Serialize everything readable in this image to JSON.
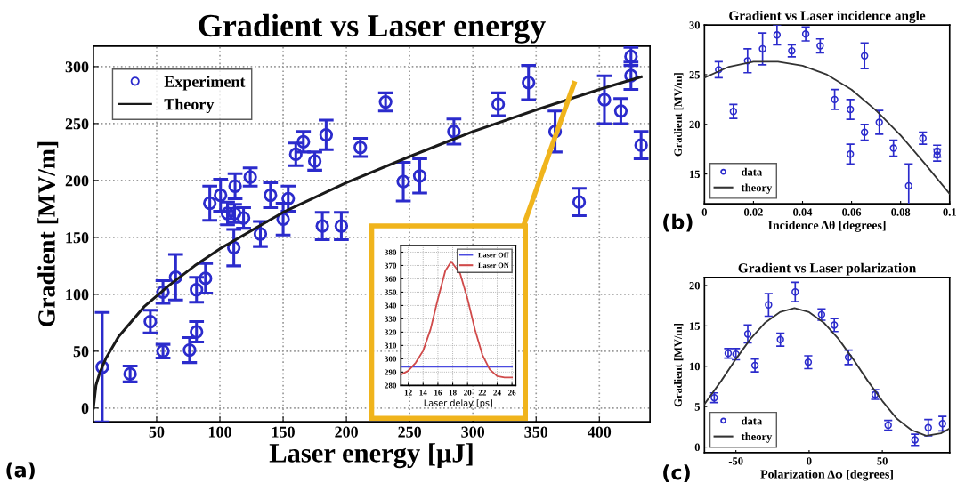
{
  "chart_data": [
    {
      "type": "scatter",
      "title": "Gradient vs Laser energy",
      "xlabel": "Laser energy [μJ]",
      "ylabel": "Gradient [MV/m]",
      "annotations": [
        "(a)"
      ],
      "xlim": [
        0,
        440
      ],
      "xticks": [
        50,
        100,
        150,
        200,
        250,
        300,
        350,
        400
      ],
      "ylim": [
        -12,
        318
      ],
      "yticks": [
        0,
        50,
        100,
        150,
        200,
        250,
        300
      ],
      "grid": true,
      "legend": "top left",
      "series": [
        {
          "name": "Experiment",
          "type": "scatter",
          "marker": "circle",
          "color": "#2b2bcc",
          "x": [
            7,
            29,
            45,
            55,
            55,
            65,
            76,
            81.5,
            81.5,
            88.6,
            92,
            100.5,
            106,
            111,
            111.6,
            112,
            118.7,
            124,
            132,
            140,
            150,
            154,
            160,
            166,
            175,
            181,
            184,
            196,
            211,
            231,
            245,
            258,
            285,
            320,
            344,
            365,
            384,
            404,
            417,
            425,
            425,
            433
          ],
          "values": [
            36,
            30,
            76,
            50,
            102,
            115,
            51,
            104,
            67,
            114,
            180,
            187,
            171,
            141,
            171,
            195,
            167,
            203,
            153,
            187,
            166,
            184,
            223,
            234,
            217,
            160,
            240,
            160,
            229,
            269,
            199,
            204,
            243,
            267,
            286,
            243,
            181,
            271,
            261,
            309,
            292,
            231
          ],
          "errors": [
            48,
            7,
            10,
            6,
            10,
            20,
            11,
            11,
            9,
            13,
            15,
            14,
            10,
            16,
            8,
            11,
            9,
            8,
            11,
            11,
            14,
            11,
            10,
            9,
            8,
            12,
            13,
            12,
            8,
            8,
            17,
            15,
            11,
            10,
            15,
            18,
            12,
            21,
            11,
            8,
            12,
            12
          ]
        },
        {
          "name": "Theory",
          "type": "line",
          "color": "#1a1a1a",
          "x": [
            0,
            2,
            5,
            10,
            20,
            40,
            60,
            80,
            100,
            150,
            200,
            250,
            300,
            350,
            400,
            433
          ],
          "values": [
            0,
            20,
            31,
            44,
            63,
            89,
            108,
            125,
            140,
            172,
            198,
            221,
            243,
            262,
            280,
            291
          ]
        }
      ]
    },
    {
      "type": "line",
      "xlabel": "Laser delay [ps]",
      "xlim": [
        11,
        26.5
      ],
      "xticks": [
        12,
        14,
        16,
        18,
        20,
        22,
        24,
        26
      ],
      "ylim": [
        280,
        385
      ],
      "yticks": [
        280,
        290,
        300,
        310,
        320,
        330,
        340,
        350,
        360,
        370,
        380
      ],
      "grid": true,
      "legend": "top right",
      "series": [
        {
          "name": "Laser Off",
          "color": "#4a4ae0",
          "x": [
            11,
            26
          ],
          "values": [
            294,
            294
          ]
        },
        {
          "name": "Laser ON",
          "color": "#d04a4a",
          "x": [
            11,
            12,
            13,
            14,
            15,
            16,
            17,
            17.8,
            19,
            20,
            21,
            22,
            23,
            24,
            25,
            26
          ],
          "values": [
            288,
            291,
            297,
            306,
            322,
            345,
            366,
            373,
            364,
            345,
            322,
            303,
            292,
            287,
            286,
            286
          ]
        }
      ]
    },
    {
      "type": "scatter",
      "title": "Gradient vs Laser incidence angle",
      "xlabel": "Incidence Δθ [degrees]",
      "ylabel": "Gradient [MV/m]",
      "annotations": [
        "(b)"
      ],
      "xlim": [
        0,
        0.1
      ],
      "xticks": [
        0,
        0.02,
        0.04,
        0.06,
        0.08,
        0.1
      ],
      "ylim": [
        12,
        30
      ],
      "yticks": [
        15,
        20,
        25,
        30
      ],
      "legend": "bottom left",
      "series": [
        {
          "name": "data",
          "type": "scatter",
          "marker": "circle",
          "color": "#2b2bcc",
          "x": [
            0.0058,
            0.0118,
            0.0176,
            0.0237,
            0.0296,
            0.0356,
            0.0413,
            0.0472,
            0.0531,
            0.0595,
            0.0595,
            0.0653,
            0.0653,
            0.0713,
            0.0771,
            0.0833,
            0.0891,
            0.0949,
            0.0949
          ],
          "values": [
            25.5,
            21.3,
            26.4,
            27.6,
            29.0,
            27.4,
            29.1,
            27.9,
            22.5,
            21.5,
            17.0,
            26.9,
            19.2,
            20.2,
            17.6,
            13.8,
            18.6,
            17.3,
            16.9
          ],
          "errors": [
            0.8,
            0.7,
            1.2,
            1.6,
            1.0,
            0.6,
            0.7,
            0.7,
            1.0,
            1.0,
            1.0,
            1.3,
            0.8,
            1.2,
            0.8,
            2.2,
            0.6,
            0.6,
            0.6
          ]
        },
        {
          "name": "theory",
          "type": "line",
          "color": "#333333",
          "x": [
            0,
            0.01,
            0.02,
            0.03,
            0.04,
            0.05,
            0.06,
            0.07,
            0.08,
            0.09,
            0.1
          ],
          "values": [
            24.7,
            25.8,
            26.3,
            26.3,
            25.9,
            25.0,
            23.5,
            21.4,
            18.9,
            16.0,
            13.0
          ]
        }
      ]
    },
    {
      "type": "scatter",
      "title": "Gradient vs Laser polarization",
      "xlabel": "Polarization Δϕ [degrees]",
      "ylabel": "Gradient [MV/m]",
      "annotations": [
        "(c)"
      ],
      "xlim": [
        -71.5,
        96
      ],
      "xticks": [
        -50,
        0,
        50
      ],
      "ylim": [
        -0.7,
        21
      ],
      "yticks": [
        0,
        5,
        10,
        15,
        20
      ],
      "legend": "bottom left",
      "series": [
        {
          "name": "data",
          "type": "scatter",
          "marker": "circle",
          "color": "#2b2bcc",
          "x": [
            -64.8,
            -55.3,
            -50,
            -41.9,
            -37,
            -27.7,
            -19.6,
            -9.5,
            -0.6,
            8.5,
            17.2,
            26.9,
            45.1,
            54,
            72.3,
            81.4,
            91.1
          ],
          "values": [
            6.1,
            11.6,
            11.5,
            14.0,
            10.1,
            17.6,
            13.3,
            19.2,
            10.5,
            16.4,
            15.1,
            11.1,
            6.5,
            2.7,
            0.9,
            2.4,
            2.9
          ],
          "errors": [
            0.6,
            0.6,
            0.7,
            1.1,
            0.8,
            1.4,
            0.8,
            1.2,
            0.8,
            0.7,
            0.8,
            0.9,
            0.6,
            0.6,
            0.7,
            1.0,
            0.9
          ]
        },
        {
          "name": "theory",
          "type": "line",
          "color": "#333333",
          "x": [
            -71.5,
            -60,
            -50,
            -40,
            -30,
            -20,
            -10,
            0,
            10,
            20,
            30,
            40,
            50,
            60,
            70,
            80,
            90,
            96
          ],
          "values": [
            5.3,
            8.2,
            10.9,
            13.4,
            15.4,
            16.7,
            17.2,
            16.7,
            15.4,
            13.4,
            10.9,
            8.2,
            5.7,
            3.5,
            2.1,
            1.4,
            1.7,
            2.3
          ]
        }
      ]
    }
  ]
}
